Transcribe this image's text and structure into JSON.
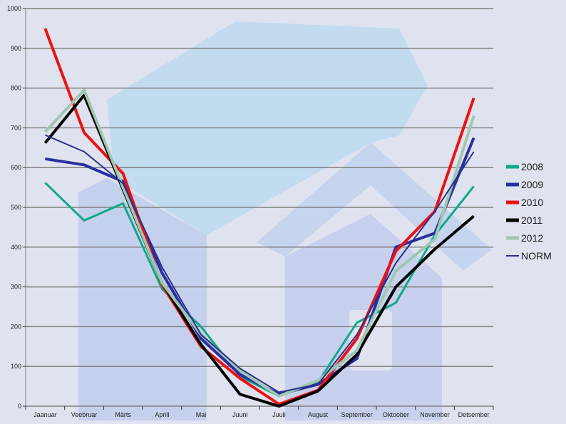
{
  "chart_data": {
    "type": "line",
    "title": "",
    "xlabel": "",
    "ylabel": "",
    "categories": [
      "Jaanuar",
      "Veebruar",
      "Märts",
      "Aprill",
      "Mai",
      "Juuni",
      "Juuli",
      "August",
      "September",
      "Oktoober",
      "November",
      "Detsember"
    ],
    "ylim": [
      0,
      1000
    ],
    "yticks": [
      0,
      100,
      200,
      300,
      400,
      500,
      600,
      700,
      800,
      900,
      1000
    ],
    "grid": true,
    "legend_position": "right",
    "series": [
      {
        "name": "2008",
        "color": "#10a88a",
        "width": 3,
        "values": [
          562,
          467,
          510,
          295,
          200,
          75,
          25,
          60,
          210,
          260,
          430,
          553
        ]
      },
      {
        "name": "2009",
        "color": "#2a2fa0",
        "width": 4,
        "values": [
          622,
          607,
          565,
          335,
          170,
          80,
          30,
          55,
          120,
          400,
          435,
          675
        ]
      },
      {
        "name": "2010",
        "color": "#ee1111",
        "width": 4,
        "values": [
          950,
          688,
          585,
          305,
          150,
          70,
          5,
          40,
          170,
          390,
          490,
          775
        ]
      },
      {
        "name": "2011",
        "color": "#000000",
        "width": 4,
        "values": [
          662,
          782,
          545,
          310,
          155,
          30,
          0,
          38,
          130,
          300,
          395,
          478
        ]
      },
      {
        "name": "2012",
        "color": "#9ec8b0",
        "width": 4,
        "values": [
          690,
          795,
          550,
          310,
          180,
          90,
          25,
          65,
          140,
          340,
          420,
          730
        ]
      },
      {
        "name": "NORM",
        "color": "#2a2f8a",
        "width": 2,
        "values": [
          682,
          640,
          560,
          350,
          180,
          95,
          35,
          55,
          180,
          360,
          490,
          640
        ]
      }
    ]
  }
}
